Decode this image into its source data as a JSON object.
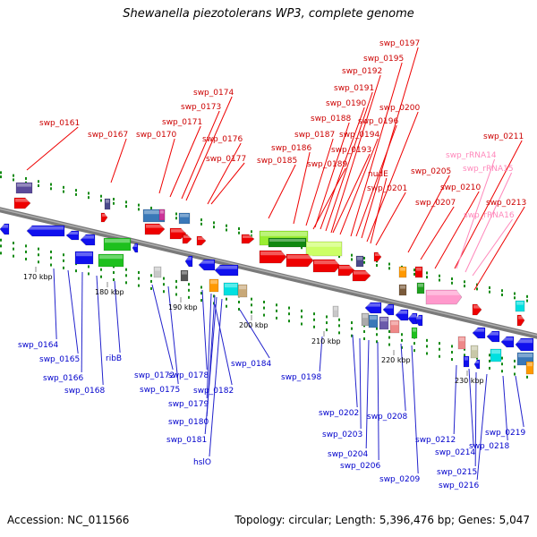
{
  "title": "Shewanella piezotolerans WP3, complete genome",
  "footer": {
    "accession": "Accession: NC_011566",
    "topology": "Topology: circular; Length: 5,396,476 bp; Genes: 5,047"
  },
  "colors": {
    "backbone": "#8a8a8a",
    "label_forward": "#cc0000",
    "label_reverse": "#0000cc",
    "label_rna": "#ff88bb",
    "tick": "#138a13",
    "leader_forward": "#ee0000",
    "leader_reverse": "#2222cc",
    "leader_rna": "#ff88bb"
  },
  "ruler_labels": [
    "170 kbp",
    "180 kbp",
    "190 kbp",
    "200 kbp",
    "210 kbp",
    "220 kbp",
    "230 kbp"
  ],
  "labels": {
    "forward": [
      "swp_0161",
      "swp_0167",
      "swp_0170",
      "swp_0171",
      "swp_0173",
      "swp_0174",
      "swp_0176",
      "swp_0177",
      "swp_0185",
      "swp_0186",
      "swp_0187",
      "swp_0188",
      "swp_0189",
      "swp_0190",
      "swp_0191",
      "swp_0192",
      "swp_0193",
      "swp_0194",
      "swp_0195",
      "swp_0196",
      "swp_0197",
      "swp_0200",
      "nudE",
      "swp_0201",
      "swp_0205",
      "swp_0207",
      "swp_0210",
      "swp_0211",
      "swp_0213"
    ],
    "rna": [
      "swp_rRNA14",
      "swp_rRNA15",
      "swp_rRNA16"
    ],
    "reverse": [
      "swp_0164",
      "swp_0165",
      "swp_0166",
      "swp_0168",
      "ribB",
      "swp_0172",
      "swp_0175",
      "swp_0178",
      "swp_0179",
      "swp_0180",
      "swp_0181",
      "hslO",
      "swp_0182",
      "swp_0184",
      "swp_0198",
      "swp_0202",
      "swp_0203",
      "swp_0204",
      "swp_0206",
      "swp_0208",
      "swp_0209",
      "swp_0212",
      "swp_0214",
      "swp_0215",
      "swp_0216",
      "swp_0218",
      "swp_0219"
    ]
  }
}
